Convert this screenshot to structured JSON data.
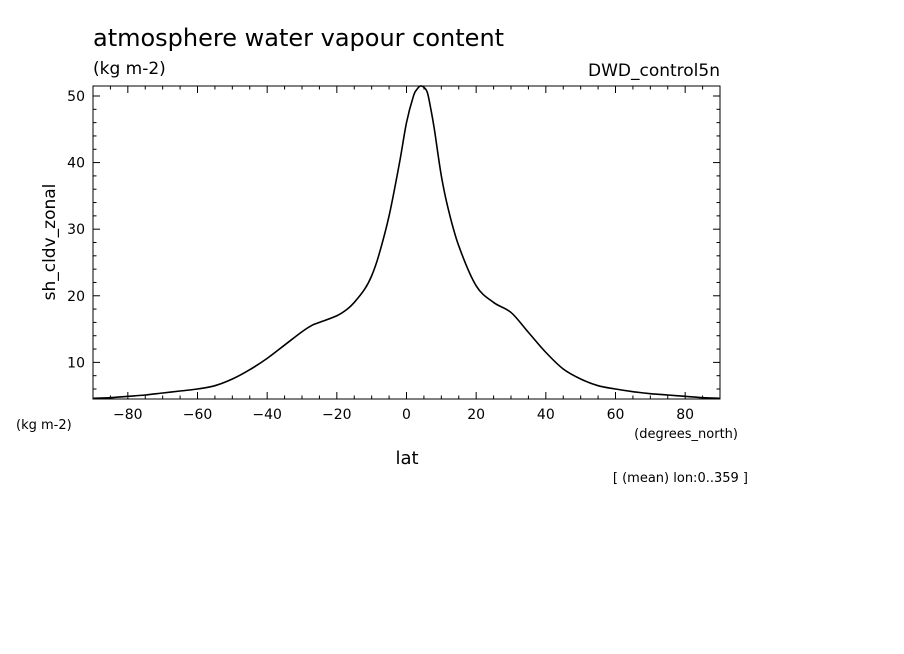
{
  "chart_data": {
    "type": "line",
    "title": "atmosphere water vapour content",
    "units_label": "(kg m-2)",
    "dataset_label": "DWD_control5n",
    "ylabel": "sh_cldv_zonal",
    "yunits": "(kg m-2)",
    "xlabel": "lat",
    "xunits": "(degrees_north)",
    "footnote": "[ (mean) lon:0..359 ]",
    "xlim": [
      -90,
      90
    ],
    "ylim": [
      4.5,
      51.5
    ],
    "x_ticks": [
      -80,
      -60,
      -40,
      -20,
      0,
      20,
      40,
      60,
      80
    ],
    "y_ticks": [
      10,
      20,
      30,
      40,
      50
    ],
    "grid": false,
    "series": [
      {
        "x": [
          -90,
          -85,
          -80,
          -75,
          -70,
          -65,
          -60,
          -55,
          -50,
          -45,
          -40,
          -35,
          -30,
          -27,
          -25,
          -20,
          -17,
          -15,
          -12,
          -10,
          -8,
          -5,
          -2,
          0,
          2,
          3,
          4,
          5,
          6,
          7,
          8,
          10,
          12,
          15,
          20,
          25,
          30,
          35,
          40,
          45,
          50,
          55,
          60,
          65,
          70,
          75,
          80,
          85,
          90
        ],
        "y": [
          4.6,
          4.7,
          4.9,
          5.1,
          5.4,
          5.7,
          6.0,
          6.5,
          7.5,
          8.9,
          10.6,
          12.6,
          14.6,
          15.6,
          16.0,
          17.0,
          18.0,
          19.0,
          21.0,
          23.0,
          26.0,
          32.0,
          40.0,
          46.0,
          50.0,
          51.0,
          51.5,
          51.3,
          50.5,
          48.0,
          45.0,
          38.0,
          33.0,
          27.5,
          21.5,
          19.0,
          17.5,
          14.5,
          11.5,
          9.0,
          7.5,
          6.5,
          6.0,
          5.6,
          5.3,
          5.1,
          4.9,
          4.7,
          4.6
        ]
      }
    ]
  }
}
